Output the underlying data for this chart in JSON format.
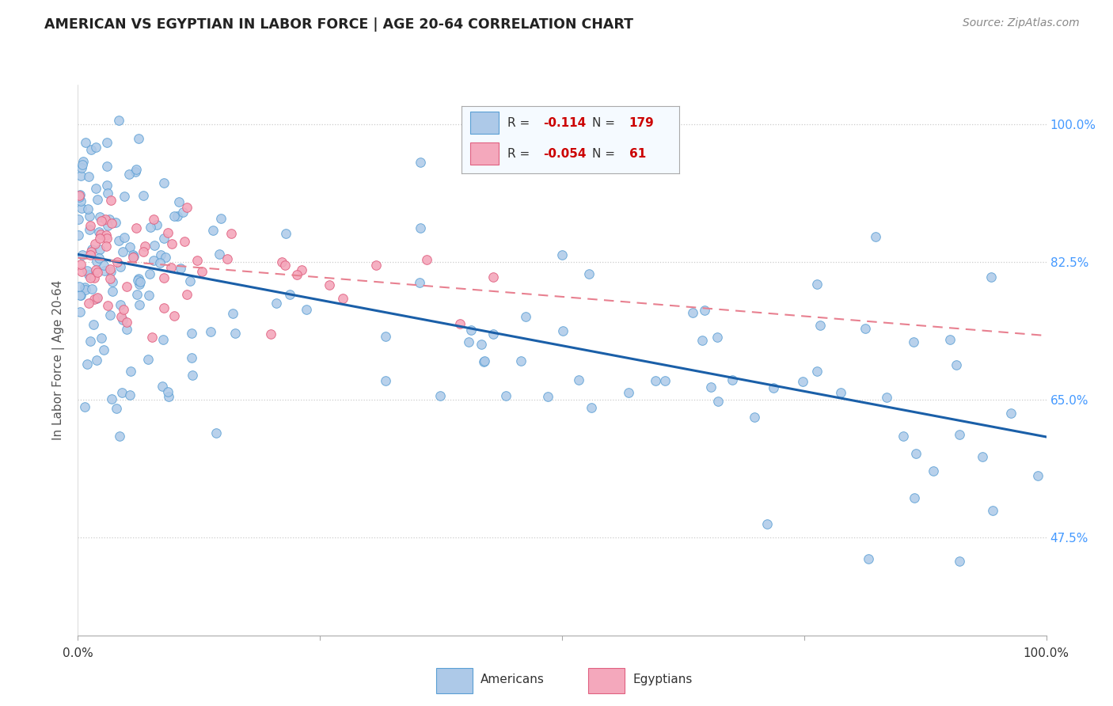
{
  "title": "AMERICAN VS EGYPTIAN IN LABOR FORCE | AGE 20-64 CORRELATION CHART",
  "source": "Source: ZipAtlas.com",
  "ylabel": "In Labor Force | Age 20-64",
  "american_color": "#adc9e8",
  "american_edge": "#5a9fd4",
  "egyptian_color": "#f4a8bc",
  "egyptian_edge": "#e06080",
  "trend_american_color": "#1a5fa8",
  "trend_egyptian_color": "#e88090",
  "background": "#ffffff",
  "grid_color": "#cccccc",
  "ytick_color": "#4499ff",
  "legend_bg": "#f5faff",
  "legend_border": "#aaaaaa",
  "r_value_color": "#cc0000",
  "n_value_color": "#cc0000",
  "label_color": "#555555",
  "title_color": "#222222",
  "source_color": "#888888",
  "R_american": "-0.114",
  "N_american": "179",
  "R_egyptian": "-0.054",
  "N_egyptian": "61",
  "xmin": 0.0,
  "xmax": 1.0,
  "ymin": 0.35,
  "ymax": 1.05,
  "yticks": [
    0.475,
    0.65,
    0.825,
    1.0
  ],
  "ytick_labels": [
    "47.5%",
    "65.0%",
    "82.5%",
    "100.0%"
  ]
}
